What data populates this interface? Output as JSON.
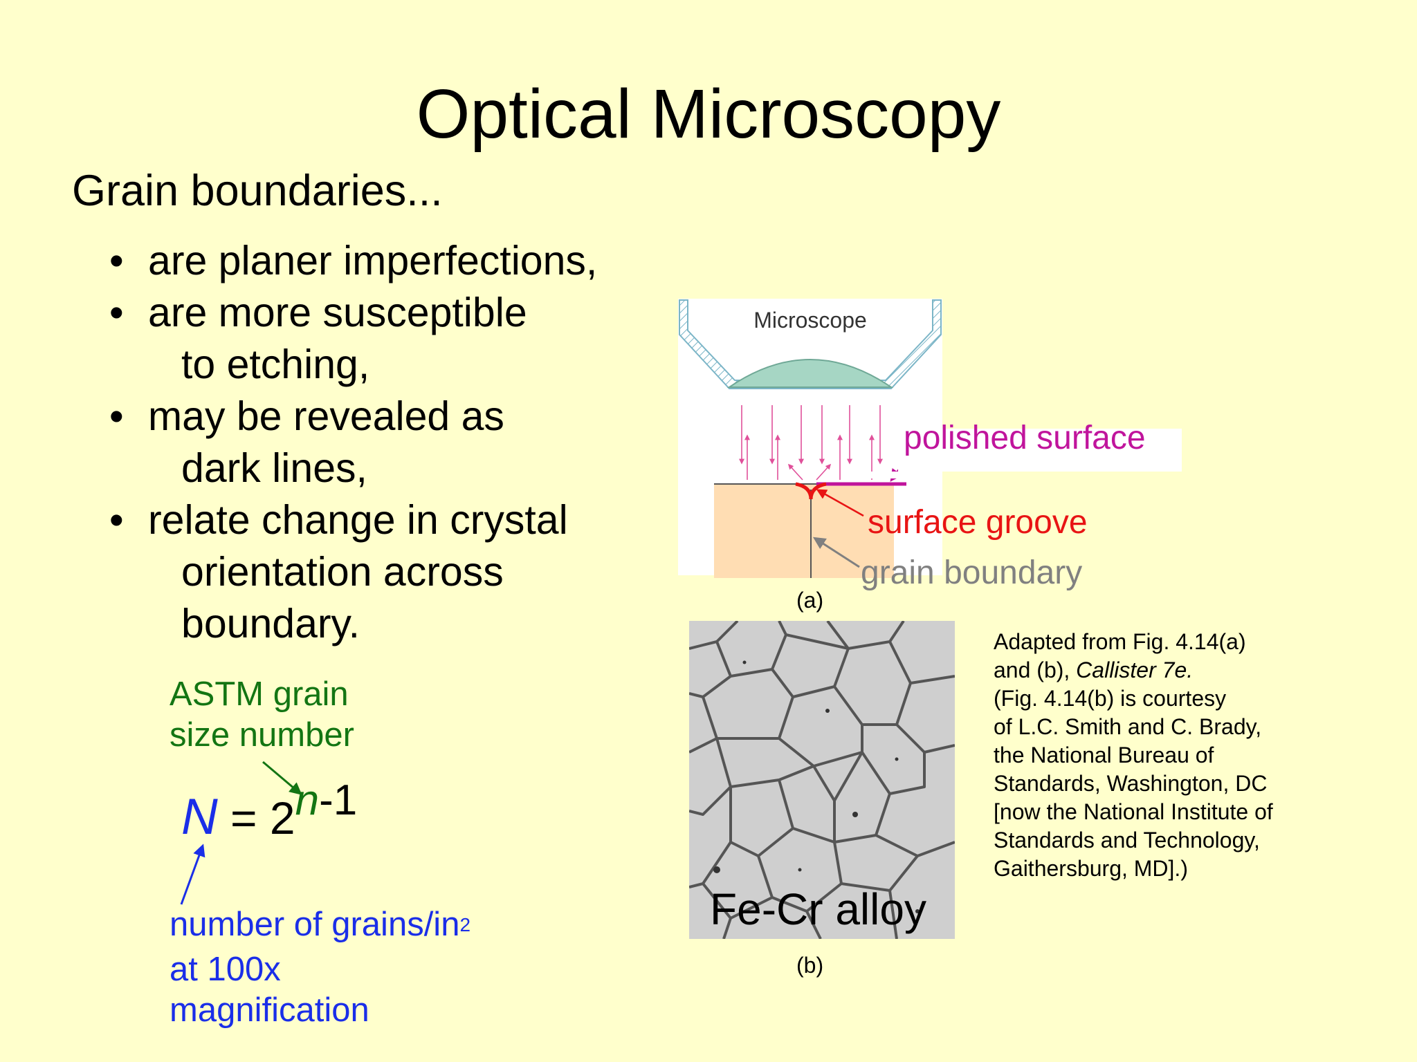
{
  "slide": {
    "title": "Optical Microscopy",
    "intro": "Grain boundaries...",
    "bullets": [
      {
        "lines": [
          "are planer imperfections,"
        ]
      },
      {
        "lines": [
          "are more susceptible",
          "to etching,"
        ]
      },
      {
        "lines": [
          "may be revealed as",
          "dark lines,"
        ]
      },
      {
        "lines": [
          "relate change in crystal",
          "orientation across",
          "boundary."
        ]
      }
    ]
  },
  "astm": {
    "line1": "ASTM grain",
    "line2": "size number"
  },
  "formula": {
    "lhs": "N",
    "eq": " = 2",
    "exp_var": "n",
    "exp_rest": "-1"
  },
  "grains_label": {
    "line1_text": "number of grains/in",
    "line1_sup": "2",
    "line2": "at 100x",
    "line3": "magnification"
  },
  "figure_a": {
    "microscope_label": "Microscope",
    "polished_surface": "polished surface",
    "surface_groove": "surface groove",
    "grain_boundary": "grain boundary",
    "caption": "(a)"
  },
  "figure_b": {
    "alloy_label": "Fe-Cr alloy",
    "caption": "(b)"
  },
  "credit": {
    "lines": [
      {
        "text": "Adapted from Fig. 4.14(a)",
        "italic": ""
      },
      {
        "text": "and (b), ",
        "italic": "Callister 7e."
      },
      {
        "text": "(Fig. 4.14(b) is courtesy",
        "italic": ""
      },
      {
        "text": "of L.C. Smith and C. Brady,",
        "italic": ""
      },
      {
        "text": "the National Bureau of",
        "italic": ""
      },
      {
        "text": "Standards, Washington, DC",
        "italic": ""
      },
      {
        "text": "[now the National Institute of",
        "italic": ""
      },
      {
        "text": "Standards and Technology,",
        "italic": ""
      },
      {
        "text": "Gaithersburg, MD].)",
        "italic": ""
      }
    ]
  },
  "colors": {
    "background": "#FFFFCC",
    "green": "#137513",
    "blue": "#1A2EE8",
    "magenta": "#C0149C",
    "red": "#E81414",
    "gray": "#808080",
    "grain_fill": "#FFDDB3",
    "lens_fill": "#A6D6C4"
  }
}
